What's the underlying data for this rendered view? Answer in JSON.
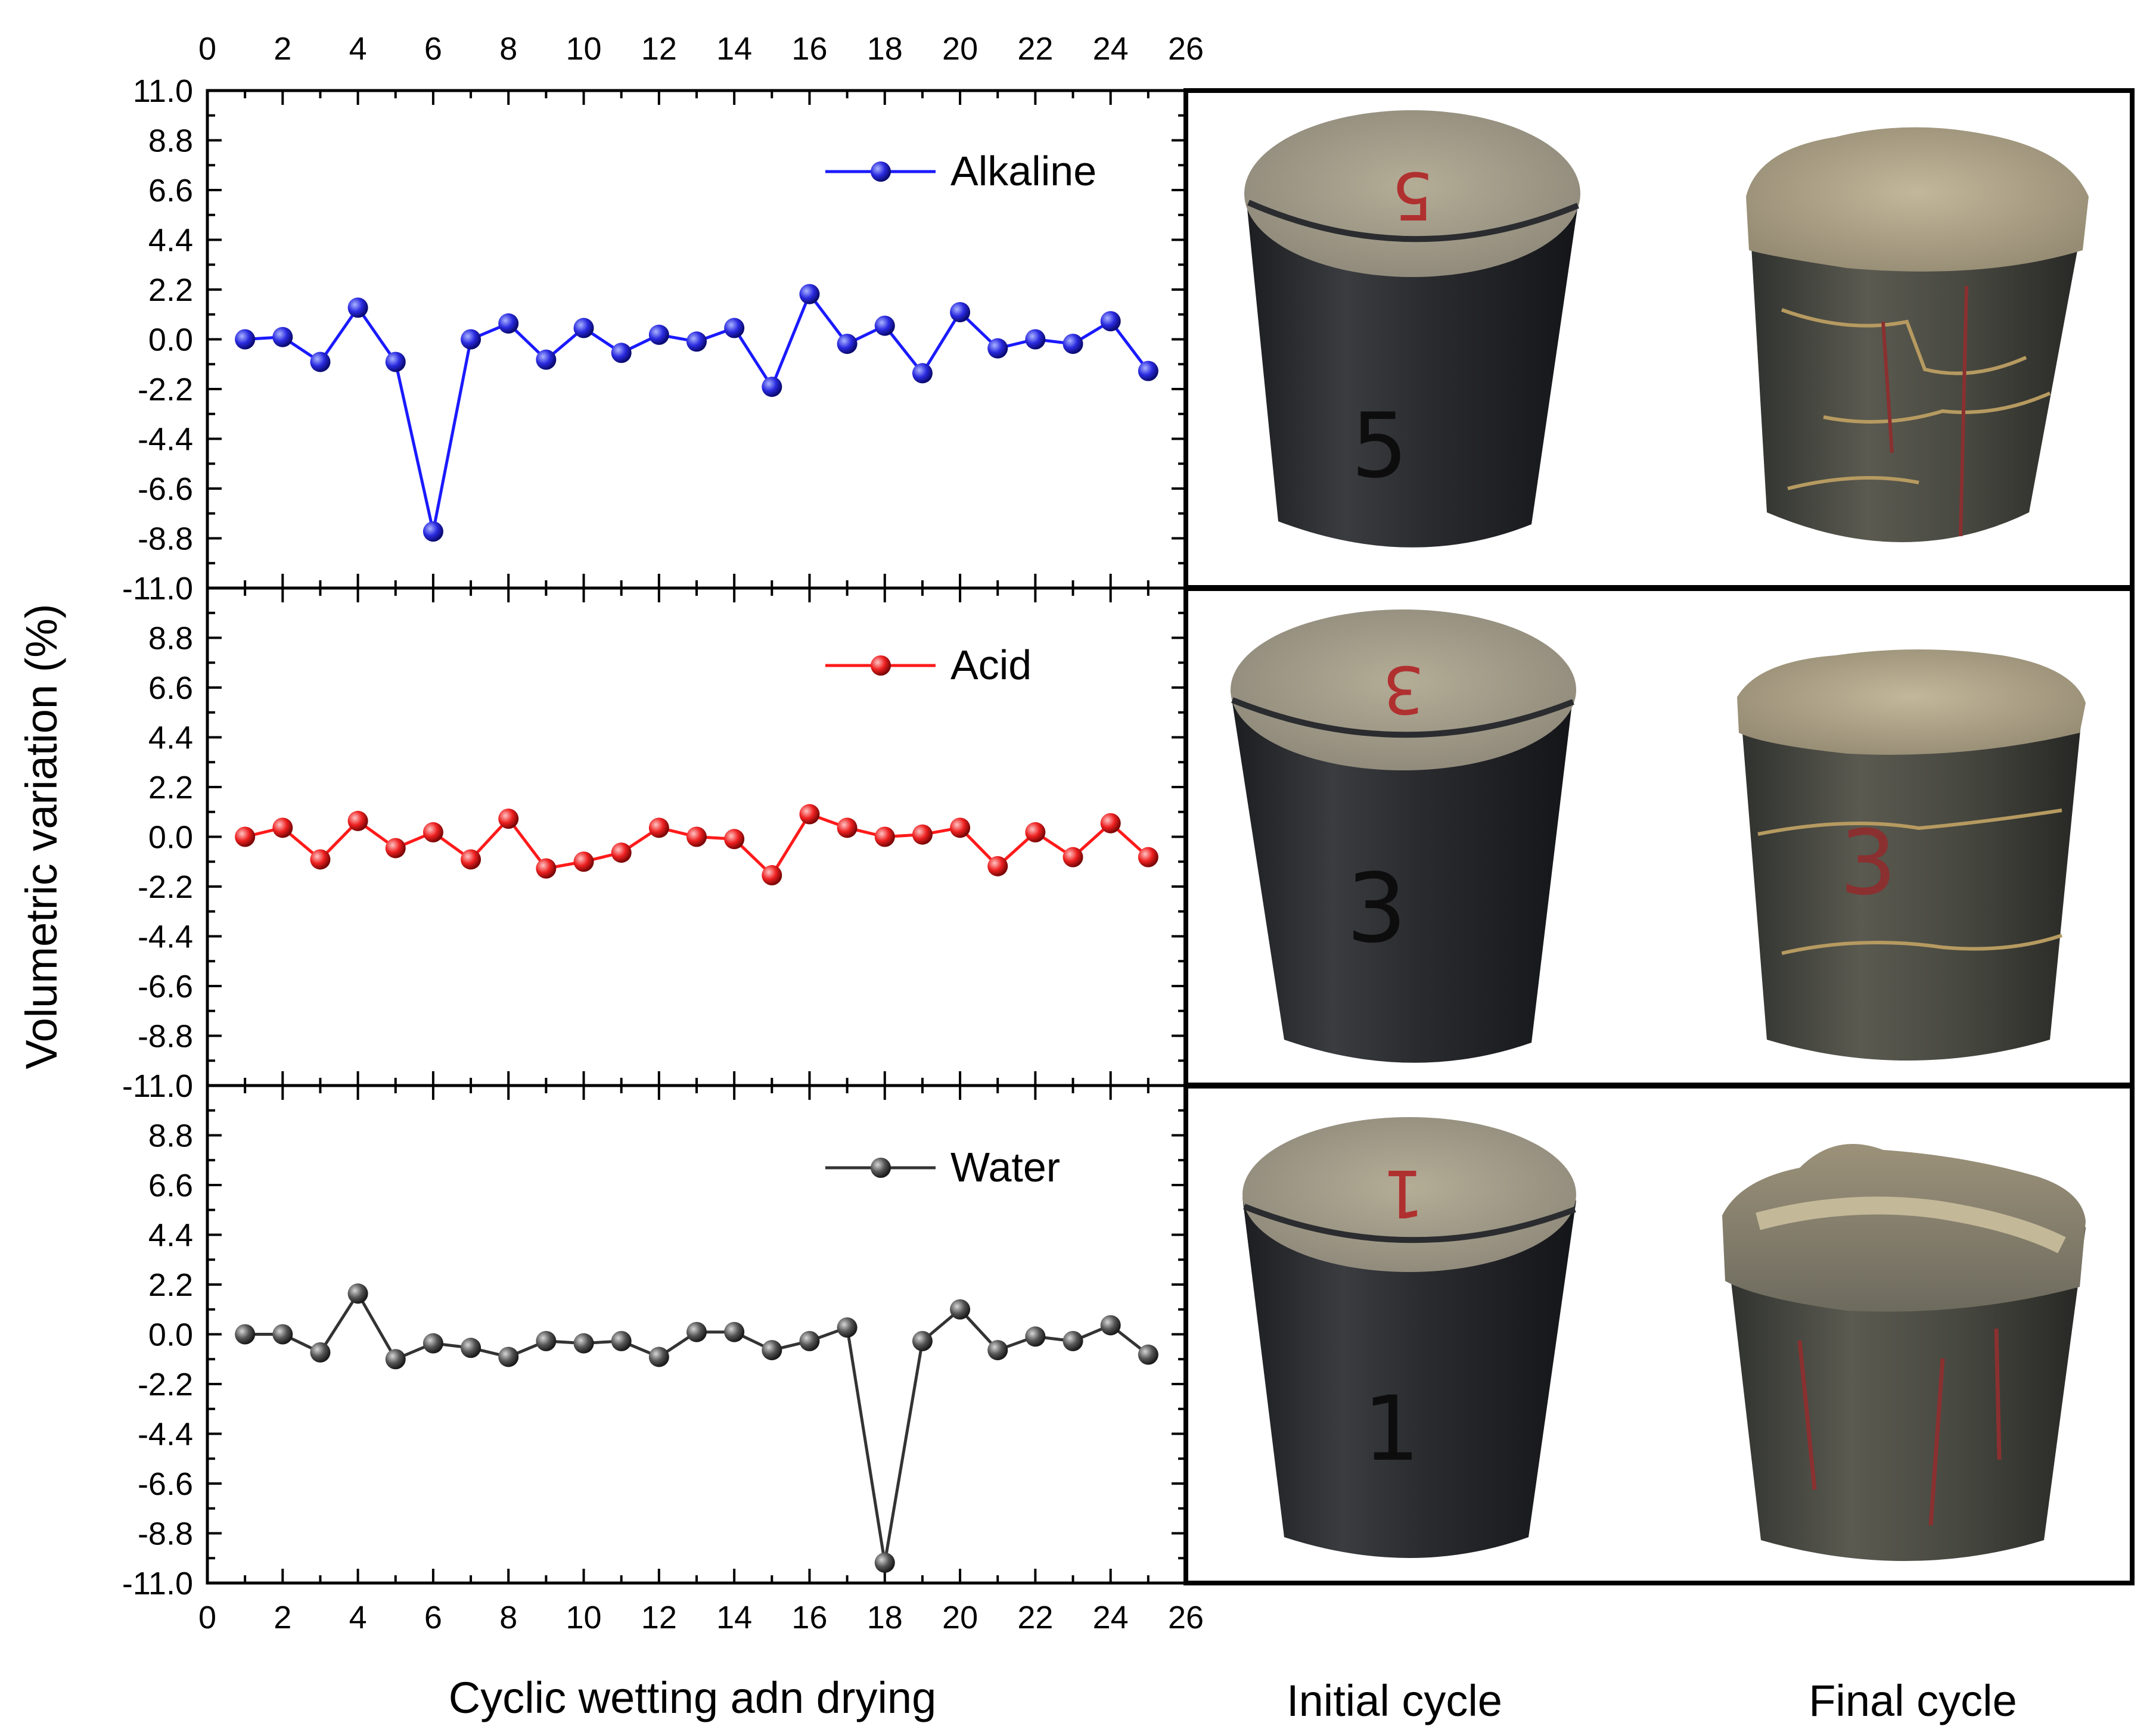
{
  "chart_data": {
    "type": "line",
    "xlabel": "Cyclic wetting adn drying",
    "ylabel": "Volumetric variation (%)",
    "xlim": [
      0,
      26
    ],
    "ylim": [
      -11.0,
      11.0
    ],
    "x_ticks": [
      "0",
      "2",
      "4",
      "6",
      "8",
      "10",
      "12",
      "14",
      "16",
      "18",
      "20",
      "22",
      "24",
      "26"
    ],
    "y_ticks": [
      "11.0",
      "8.8",
      "6.6",
      "4.4",
      "2.2",
      "0.0",
      "-2.2",
      "-4.4",
      "-6.6",
      "-8.8",
      "-11.0"
    ],
    "x": [
      1,
      2,
      3,
      4,
      5,
      6,
      7,
      8,
      9,
      10,
      11,
      12,
      13,
      14,
      15,
      16,
      17,
      18,
      19,
      20,
      21,
      22,
      23,
      24,
      25
    ],
    "series": [
      {
        "name": "Alkaline",
        "color": "#1a1aff",
        "values": [
          0.0,
          0.1,
          -1.0,
          1.4,
          -1.0,
          -8.5,
          0.0,
          0.7,
          -0.9,
          0.5,
          -0.6,
          0.2,
          -0.1,
          0.5,
          -2.1,
          2.0,
          -0.2,
          0.6,
          -1.5,
          1.2,
          -0.4,
          0.0,
          -0.2,
          0.8,
          -1.4
        ]
      },
      {
        "name": "Acid",
        "color": "#ff1a1a",
        "values": [
          0.0,
          0.4,
          -1.0,
          0.7,
          -0.5,
          0.2,
          -1.0,
          0.8,
          -1.4,
          -1.1,
          -0.7,
          0.4,
          0.0,
          -0.1,
          -1.7,
          1.0,
          0.4,
          0.0,
          0.1,
          0.4,
          -1.3,
          0.2,
          -0.9,
          0.6,
          -0.9
        ]
      },
      {
        "name": "Water",
        "color": "#333333",
        "values": [
          0.0,
          0.0,
          -0.8,
          1.8,
          -1.1,
          -0.4,
          -0.6,
          -1.0,
          -0.3,
          -0.4,
          -0.3,
          -1.0,
          0.1,
          0.1,
          -0.7,
          -0.3,
          0.3,
          -10.1,
          -0.3,
          1.1,
          -0.7,
          -0.1,
          -0.3,
          0.4,
          -0.9
        ]
      }
    ]
  },
  "photos": {
    "captions": [
      "Initial cycle",
      "Final cycle"
    ],
    "specimen_numbers": [
      "5",
      "3",
      "1"
    ]
  }
}
